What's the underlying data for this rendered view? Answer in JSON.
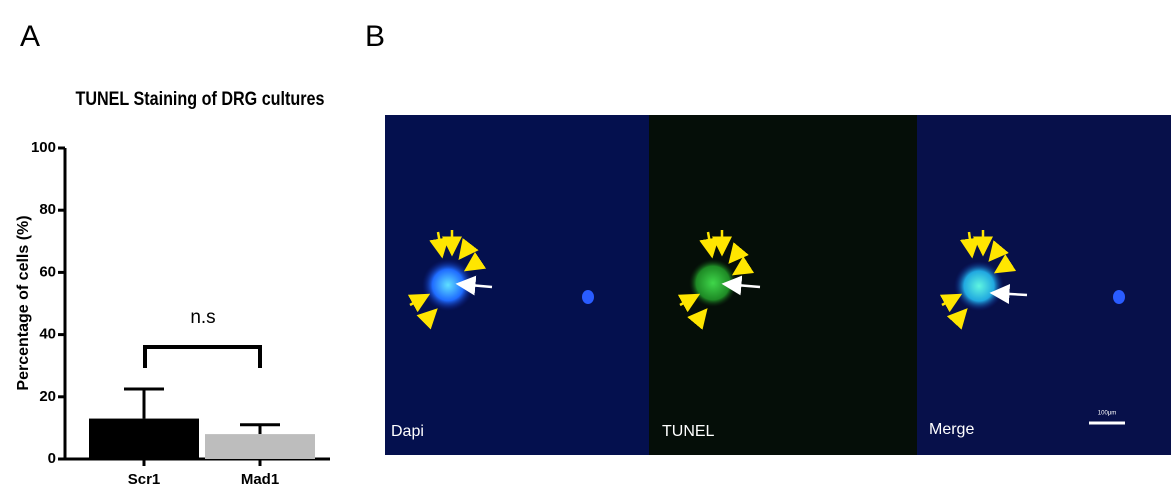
{
  "panel_labels": [
    "A",
    "B"
  ],
  "chart_data": {
    "type": "bar",
    "title": "TUNEL Staining of DRG cultures",
    "y_label": "Percentage of cells (%)",
    "categories": [
      "Scr1",
      "Mad1"
    ],
    "series": [
      {
        "name": null,
        "values": [
          13,
          8
        ],
        "errors": [
          9.5,
          3
        ],
        "colors": [
          "#000000",
          "#bdbdbd"
        ]
      }
    ],
    "ylim": [
      0,
      100
    ],
    "yticks": [
      0,
      20,
      40,
      60,
      80,
      100
    ],
    "annotation": "n.s"
  },
  "images": [
    {
      "label": "Dapi"
    },
    {
      "label": "TUNEL"
    },
    {
      "label": "Merge"
    }
  ],
  "scale_bar": "100μm"
}
